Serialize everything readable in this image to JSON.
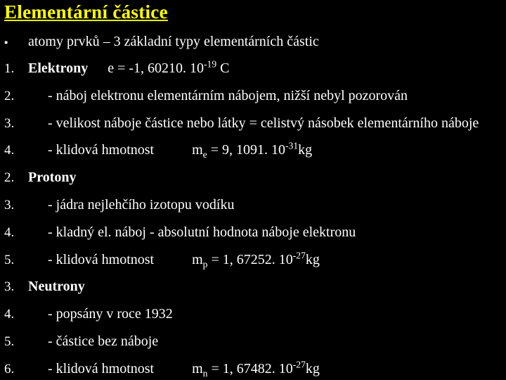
{
  "colors": {
    "background": "#000000",
    "title": "#ffff00",
    "text": "#ffffff"
  },
  "title": "Elementární částice",
  "lines": [
    {
      "marker": "▪",
      "text": "atomy prvků – 3 základní typy elementárních částic"
    },
    {
      "marker": "1.",
      "head": "Elektrony",
      "formula_prefix": "e = -1, 60210. 10",
      "formula_sup": "-19",
      "formula_suffix": " C"
    },
    {
      "marker": "2.",
      "indent": true,
      "text": "- náboj elektronu elementárním nábojem, nižší nebyl pozorován"
    },
    {
      "marker": "3.",
      "indent": true,
      "text": "- velikost náboje částice nebo látky = celistvý násobek elementárního náboje"
    },
    {
      "marker": "4.",
      "indent": true,
      "text": "- klidová hmotnost",
      "mass_sym": "m",
      "mass_sub": "e",
      "mass_val": " = 9, 1091. 10",
      "mass_sup": "-31",
      "mass_unit": "kg"
    },
    {
      "marker": "2.",
      "head": "Protony"
    },
    {
      "marker": "3.",
      "indent": true,
      "text": "- jádra nejlehčího izotopu vodíku"
    },
    {
      "marker": "4.",
      "indent": true,
      "text": "- kladný el. náboj - absolutní hodnota náboje elektronu"
    },
    {
      "marker": "5.",
      "indent": true,
      "text": "- klidová hmotnost",
      "mass_sym": "m",
      "mass_sub": "p",
      "mass_val": " = 1, 67252. 10",
      "mass_sup": "-27",
      "mass_unit": "kg"
    },
    {
      "marker": "3.",
      "head": "Neutrony"
    },
    {
      "marker": "4.",
      "indent": true,
      "text": "- popsány v roce 1932"
    },
    {
      "marker": "5.",
      "indent": true,
      "text": "- částice bez náboje"
    },
    {
      "marker": "6.",
      "indent": true,
      "text": "- klidová hmotnost",
      "mass_sym": "m",
      "mass_sub": "n",
      "mass_val": " = 1, 67482. 10",
      "mass_sup": "-27",
      "mass_unit": "kg"
    }
  ]
}
